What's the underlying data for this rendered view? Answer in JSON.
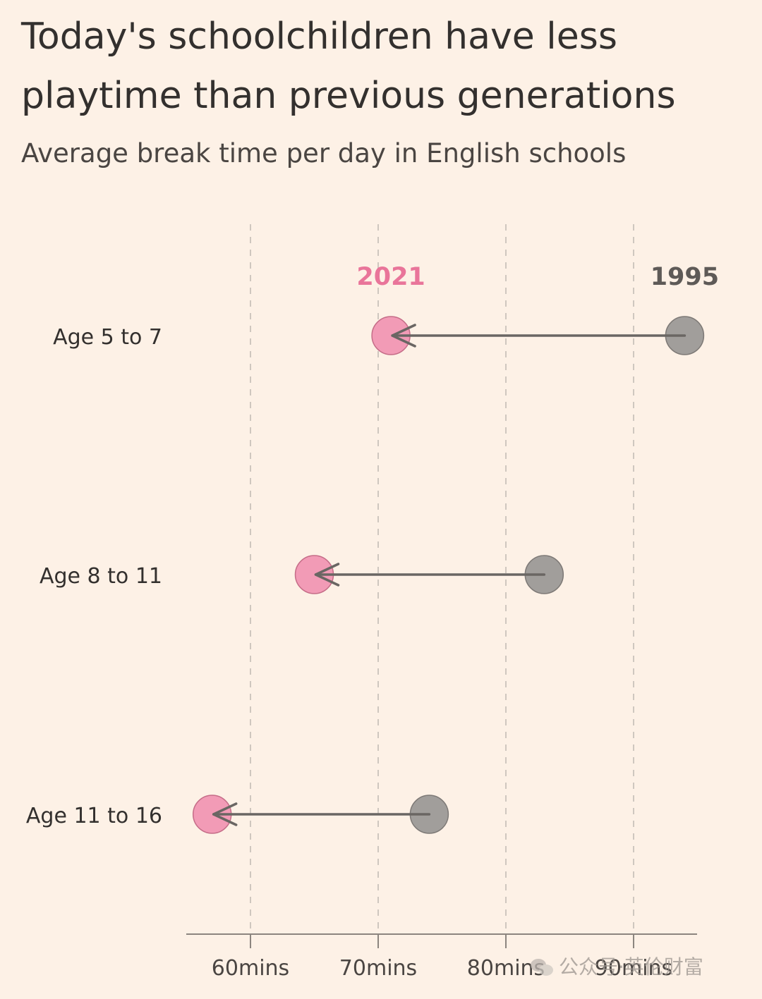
{
  "title": "Today's schoolchildren have less playtime than previous generations",
  "subtitle": "Average break time per day in English schools",
  "watermark": "公众号·英伦财富",
  "colors": {
    "year_2021": "#e9759a",
    "dot_2021": "#f29bb6",
    "year_1995": "#5e5a57",
    "dot_1995": "#a19e9b",
    "arrow": "#6a6663",
    "grid": "#cfc7bf",
    "axis": "#8c857f",
    "background": "#fdf1e6"
  },
  "chart_data": {
    "type": "dumbbell",
    "title": "Today's schoolchildren have less playtime than previous generations",
    "subtitle": "Average break time per day in English schools",
    "categories": [
      "Age 5 to 7",
      "Age 8 to 11",
      "Age 11 to 16"
    ],
    "series": [
      {
        "name": "1995",
        "values": [
          94,
          83,
          74
        ]
      },
      {
        "name": "2021",
        "values": [
          71,
          65,
          57
        ]
      }
    ],
    "xlim": [
      55,
      95
    ],
    "xticks": [
      60,
      70,
      80,
      90
    ],
    "xtick_labels": [
      "60mins",
      "70mins",
      "80mins",
      "90mins"
    ],
    "xlabel": "",
    "ylabel": "",
    "grid": true,
    "legend": "direct labels above first row"
  }
}
